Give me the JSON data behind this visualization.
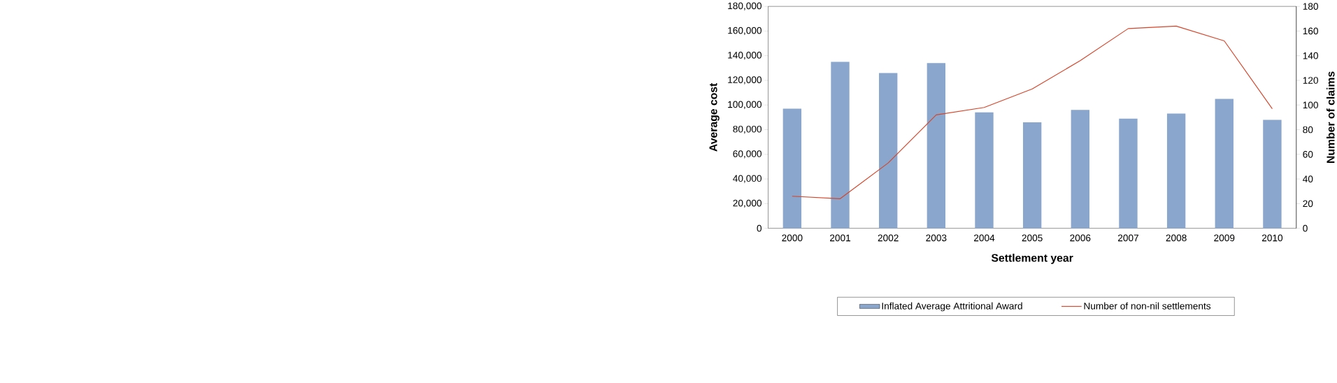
{
  "chart_data": {
    "type": "bar",
    "xlabel": "Settlement year",
    "ylabel": "Average cost",
    "y2label": "Number of claims",
    "categories": [
      "2000",
      "2001",
      "2002",
      "2003",
      "2004",
      "2005",
      "2006",
      "2007",
      "2008",
      "2009",
      "2010"
    ],
    "series": [
      {
        "name": "Inflated Average Attritional Award",
        "color": "#8aa6cc",
        "values": [
          97000,
          135000,
          126000,
          134000,
          94000,
          86000,
          96000,
          89000,
          93000,
          105000,
          88000
        ]
      },
      {
        "name": "Number of non-nil settlements",
        "type": "line",
        "axis": "y2",
        "color": "#d4452a",
        "values": [
          26,
          24,
          53,
          92,
          98,
          113,
          136,
          162,
          164,
          152,
          97
        ]
      }
    ],
    "ylim": [
      0,
      180000
    ],
    "yticks": [
      0,
      {
        "value": 20000,
        "label": "20,000"
      },
      {
        "value": 40000,
        "label": "40,000"
      },
      {
        "value": 60000,
        "label": "60,000"
      },
      {
        "value": 80000,
        "label": "80,000"
      },
      {
        "value": 100000,
        "label": "100,000"
      },
      {
        "value": 120000,
        "label": "120,000"
      },
      {
        "value": 140000,
        "label": "140,000"
      },
      {
        "value": 160000,
        "label": "160,000"
      },
      {
        "value": 180000,
        "label": "180,000"
      }
    ],
    "y2lim": [
      0,
      180
    ],
    "y2ticks": [
      0,
      20,
      40,
      60,
      80,
      100,
      120,
      140,
      160,
      180
    ],
    "legend": "bottom",
    "marker": "none",
    "line_style": "solid",
    "grid": false
  }
}
